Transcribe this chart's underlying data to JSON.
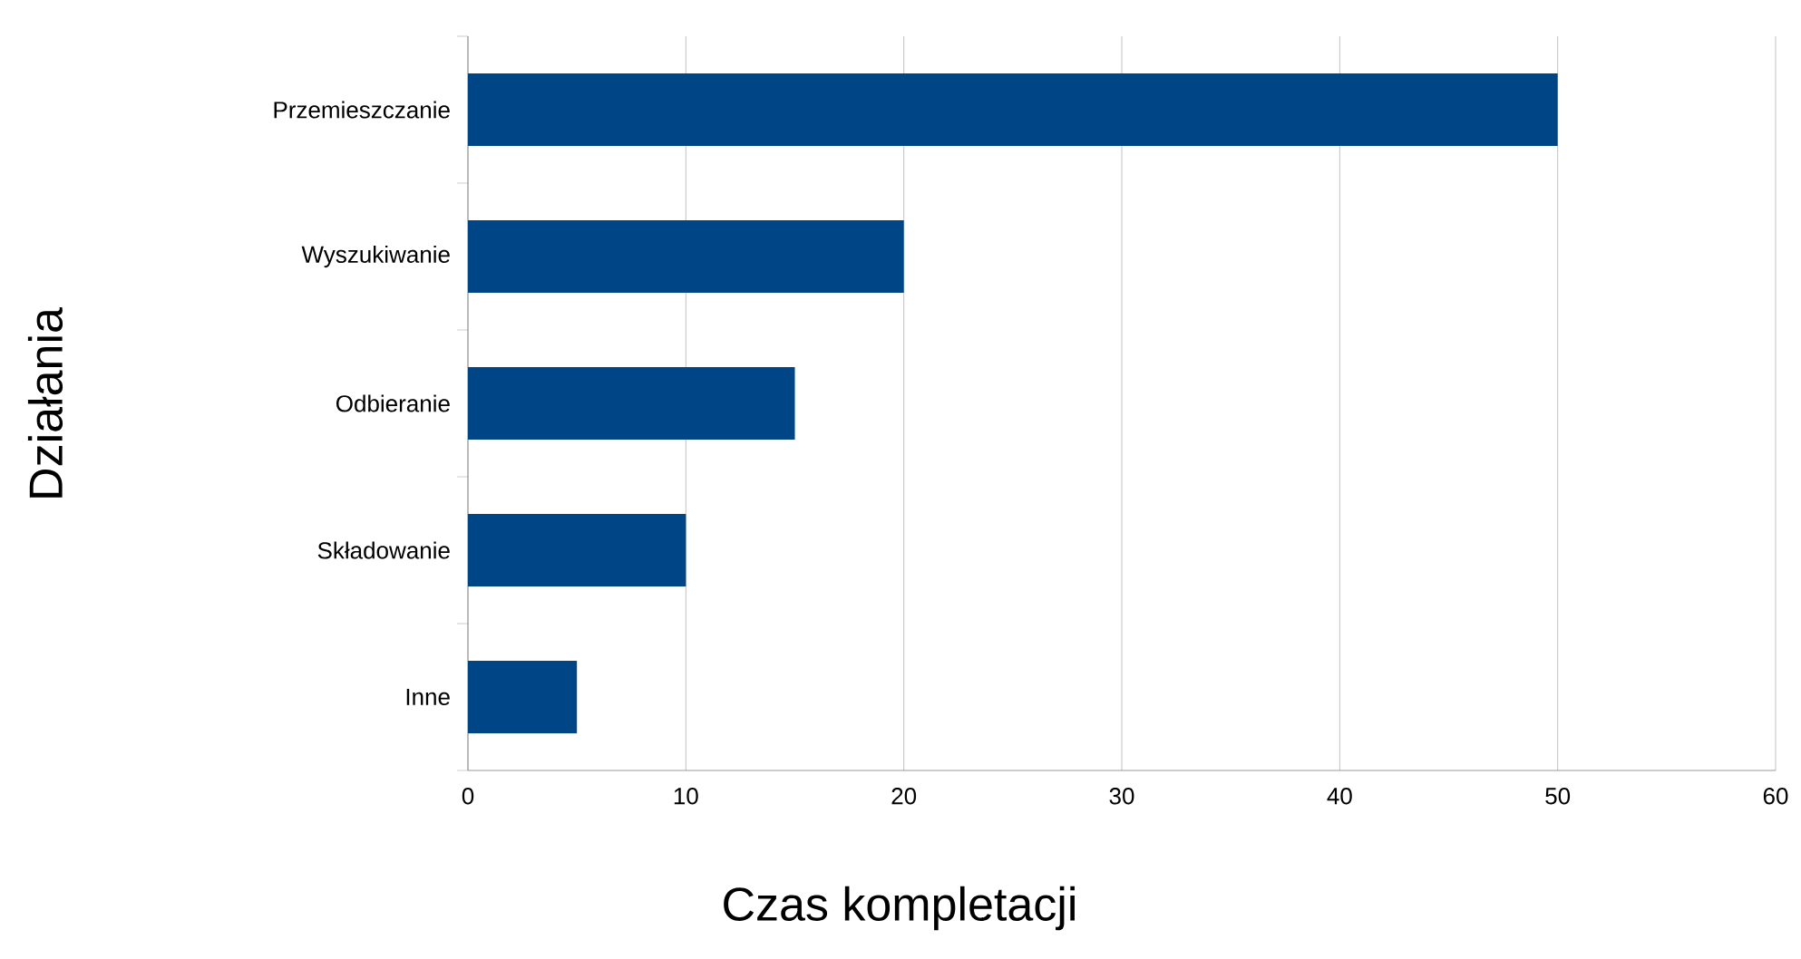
{
  "chart_data": {
    "type": "bar",
    "orientation": "horizontal",
    "xlabel": "Czas kompletacji",
    "ylabel": "Działania",
    "categories": [
      "Przemieszczanie",
      "Wyszukiwanie",
      "Odbieranie",
      "Składowanie",
      "Inne"
    ],
    "values": [
      50,
      20,
      15,
      10,
      5
    ],
    "color": "#004586",
    "xlim": [
      0,
      60
    ],
    "xticks": [
      0,
      10,
      20,
      30,
      40,
      50,
      60
    ],
    "grid": "x"
  }
}
